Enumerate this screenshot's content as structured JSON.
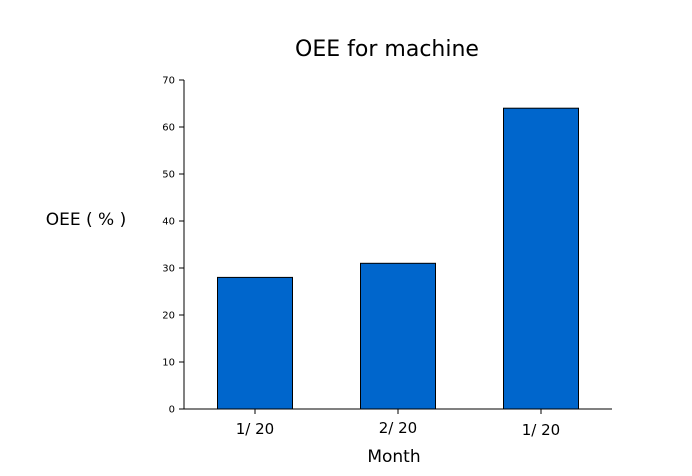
{
  "chart_data": {
    "type": "bar",
    "title": "OEE for machine",
    "xlabel": "Month",
    "ylabel": "OEE ( % )",
    "categories": [
      "1/ 20",
      "2/ 20",
      "1/ 20"
    ],
    "values": [
      28,
      31,
      64
    ],
    "ylim": [
      0,
      70
    ],
    "yticks": [
      0,
      10,
      20,
      30,
      40,
      50,
      60,
      70
    ],
    "bar_color": "#0066CC",
    "bar_edge_color": "#000000",
    "grid": false,
    "legend": "none"
  }
}
